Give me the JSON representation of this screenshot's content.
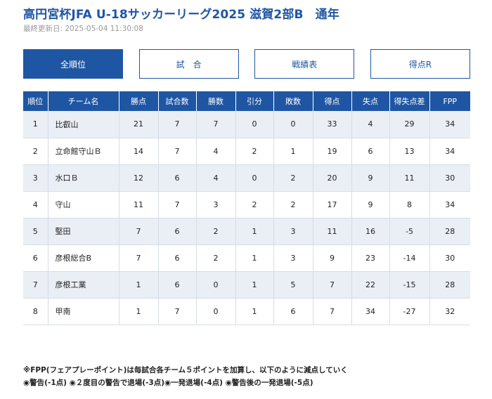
{
  "page": {
    "title": "高円宮杯JFA U-18サッカーリーグ2025 滋賀2部B　通年",
    "last_updated": "最終更新日: 2025-05-04 11:30:08"
  },
  "tabs": [
    {
      "label": "全順位",
      "active": true
    },
    {
      "label": "試　合",
      "active": false
    },
    {
      "label": "戦績表",
      "active": false
    },
    {
      "label": "得点R",
      "active": false
    }
  ],
  "table": {
    "headers": [
      "順位",
      "チーム名",
      "勝点",
      "試合数",
      "勝数",
      "引分",
      "敗数",
      "得点",
      "失点",
      "得失点差",
      "FPP"
    ],
    "rows": [
      [
        "1",
        "比叡山",
        "21",
        "7",
        "7",
        "0",
        "0",
        "33",
        "4",
        "29",
        "34"
      ],
      [
        "2",
        "立命館守山Ｂ",
        "14",
        "7",
        "4",
        "2",
        "1",
        "19",
        "6",
        "13",
        "34"
      ],
      [
        "3",
        "水口Ｂ",
        "12",
        "6",
        "4",
        "0",
        "2",
        "20",
        "9",
        "11",
        "30"
      ],
      [
        "4",
        "守山",
        "11",
        "7",
        "3",
        "2",
        "2",
        "17",
        "9",
        "8",
        "34"
      ],
      [
        "5",
        "堅田",
        "7",
        "6",
        "2",
        "1",
        "3",
        "11",
        "16",
        "-5",
        "28"
      ],
      [
        "6",
        "彦根総合B",
        "7",
        "6",
        "2",
        "1",
        "3",
        "9",
        "23",
        "-14",
        "30"
      ],
      [
        "7",
        "彦根工業",
        "1",
        "6",
        "0",
        "1",
        "5",
        "7",
        "22",
        "-15",
        "28"
      ],
      [
        "8",
        "甲南",
        "1",
        "7",
        "0",
        "1",
        "6",
        "7",
        "34",
        "-27",
        "32"
      ]
    ]
  },
  "notes": {
    "line1": "※FPP(フェアプレーポイント)は毎試合各チーム５ポイントを加算し、以下のように減点していく",
    "line2": "◉警告(-1点) ◉２度目の警告で退場(-3点)◉一発退場(-4点) ◉警告後の一発退場(-5点)"
  },
  "colors": {
    "accent": "#1f56a3",
    "row_alt": "#eaeef5"
  }
}
